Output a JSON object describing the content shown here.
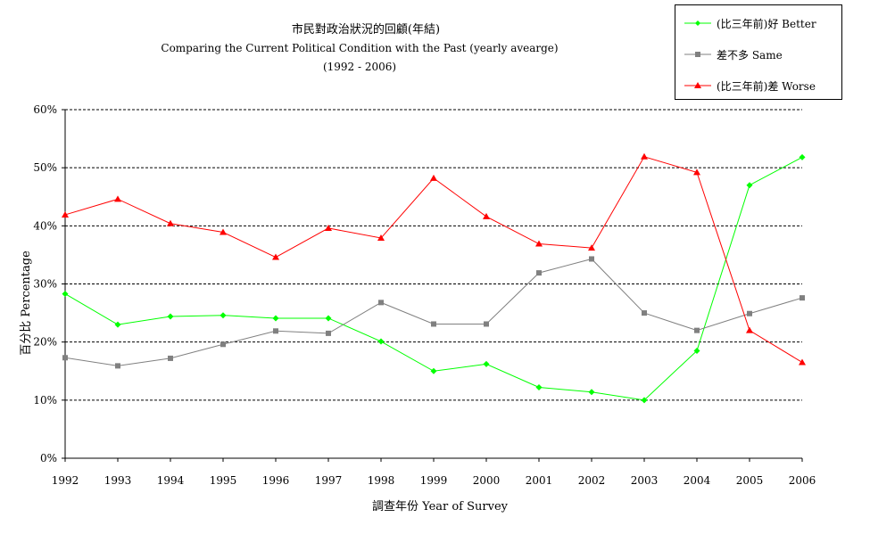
{
  "chart_data": {
    "type": "line",
    "title": "市民對政治狀況的回顧(年結)",
    "subtitle": "Comparing the Current Political Condition with the Past  (yearly avearge)",
    "subtitle2": "(1992 - 2006)",
    "xlabel": "調查年份 Year of Survey",
    "ylabel": "百分比 Percentage",
    "x": [
      1992,
      1993,
      1994,
      1995,
      1996,
      1997,
      1998,
      1999,
      2000,
      2001,
      2002,
      2003,
      2004,
      2005,
      2006
    ],
    "x_tick_labels": [
      "1992",
      "1993",
      "1994",
      "1995",
      "1996",
      "1997",
      "1998",
      "1999",
      "2000",
      "2001",
      "2002",
      "2003",
      "2004",
      "2005",
      "2006"
    ],
    "ylim": [
      0,
      60
    ],
    "y_ticks": [
      0,
      10,
      20,
      30,
      40,
      50,
      60
    ],
    "y_tick_labels": [
      "0%",
      "10%",
      "20%",
      "30%",
      "40%",
      "50%",
      "60%"
    ],
    "grid": "horizontal dashed",
    "legend_position": "top-right",
    "series": [
      {
        "name": "(比三年前)好 Better",
        "color": "#00ff00",
        "marker": "diamond",
        "values": [
          28.3,
          23.0,
          24.4,
          24.6,
          24.1,
          24.1,
          20.1,
          15.0,
          16.2,
          12.2,
          11.4,
          10.0,
          18.5,
          47.0,
          51.8
        ]
      },
      {
        "name": "差不多 Same",
        "color": "#808080",
        "marker": "square",
        "values": [
          17.3,
          15.9,
          17.2,
          19.6,
          21.9,
          21.5,
          26.8,
          23.1,
          23.1,
          31.9,
          34.3,
          25.0,
          22.0,
          24.9,
          27.6
        ]
      },
      {
        "name": "(比三年前)差 Worse",
        "color": "#ff0000",
        "marker": "triangle",
        "values": [
          41.9,
          44.6,
          40.4,
          38.9,
          34.6,
          39.6,
          37.9,
          48.2,
          41.6,
          36.9,
          36.2,
          51.9,
          49.2,
          22.0,
          16.5
        ]
      }
    ]
  }
}
